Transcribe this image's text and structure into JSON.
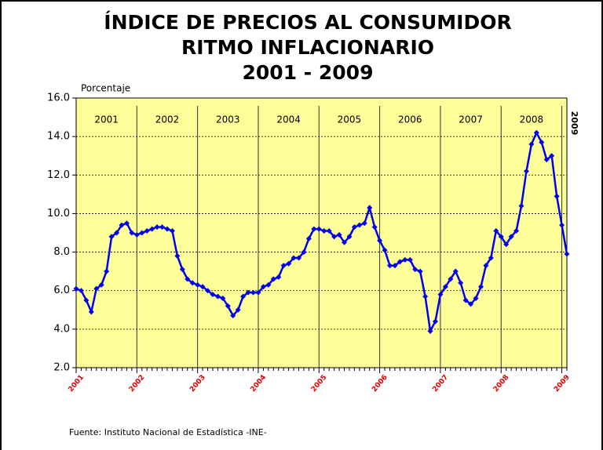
{
  "chart_data": {
    "type": "line",
    "title_lines": [
      "ÍNDICE DE PRECIOS AL CONSUMIDOR",
      "RITMO INFLACIONARIO",
      "2001 - 2009"
    ],
    "y_axis_label": "Porcentaje",
    "source": "Fuente: Instituto Nacional de Estadística -INE-",
    "period_labels": [
      "2001",
      "2002",
      "2003",
      "2004",
      "2005",
      "2006",
      "2007",
      "2008",
      "2009"
    ],
    "categories": [
      "2001",
      null,
      null,
      null,
      null,
      null,
      null,
      null,
      null,
      null,
      null,
      null,
      "2002",
      null,
      null,
      null,
      null,
      null,
      null,
      null,
      null,
      null,
      null,
      null,
      "2003",
      null,
      null,
      null,
      null,
      null,
      null,
      null,
      null,
      null,
      null,
      null,
      "2004",
      null,
      null,
      null,
      null,
      null,
      null,
      null,
      null,
      null,
      null,
      null,
      "2005",
      null,
      null,
      null,
      null,
      null,
      null,
      null,
      null,
      null,
      null,
      null,
      "2006",
      null,
      null,
      null,
      null,
      null,
      null,
      null,
      null,
      null,
      null,
      null,
      "2007",
      null,
      null,
      null,
      null,
      null,
      null,
      null,
      null,
      null,
      null,
      null,
      "2008",
      null,
      null,
      null,
      null,
      null,
      null,
      null,
      null,
      null,
      null,
      null,
      "2009",
      null
    ],
    "series": [
      {
        "name": "Ritmo inflacionario",
        "color": "#0000ee",
        "values": [
          6.1,
          6.0,
          5.5,
          4.9,
          6.1,
          6.3,
          7.0,
          8.8,
          9.0,
          9.4,
          9.5,
          9.0,
          8.9,
          9.0,
          9.1,
          9.2,
          9.3,
          9.3,
          9.2,
          9.1,
          7.8,
          7.1,
          6.6,
          6.4,
          6.3,
          6.2,
          6.0,
          5.8,
          5.7,
          5.6,
          5.2,
          4.7,
          5.0,
          5.7,
          5.9,
          5.9,
          5.9,
          6.2,
          6.3,
          6.6,
          6.7,
          7.3,
          7.4,
          7.7,
          7.7,
          8.0,
          8.7,
          9.2,
          9.2,
          9.1,
          9.1,
          8.8,
          8.9,
          8.5,
          8.8,
          9.3,
          9.4,
          9.5,
          10.3,
          9.3,
          8.6,
          8.1,
          7.3,
          7.3,
          7.5,
          7.6,
          7.6,
          7.1,
          7.0,
          5.7,
          3.9,
          4.4,
          5.8,
          6.2,
          6.6,
          7.0,
          6.4,
          5.5,
          5.3,
          5.6,
          6.2,
          7.3,
          7.7,
          9.1,
          8.8,
          8.4,
          8.8,
          9.1,
          10.4,
          12.2,
          13.6,
          14.2,
          13.7,
          12.8,
          13.0,
          10.9,
          9.4,
          7.9
        ]
      }
    ],
    "ylim": [
      2,
      16
    ],
    "yticks": [
      {
        "value": 2,
        "label": "2.0"
      },
      {
        "value": 4,
        "label": "4.0"
      },
      {
        "value": 6,
        "label": "6.0"
      },
      {
        "value": 8,
        "label": "8.0"
      },
      {
        "value": 10,
        "label": "10.0"
      },
      {
        "value": 12,
        "label": "12.0"
      },
      {
        "value": 14,
        "label": "14.0"
      },
      {
        "value": 16,
        "label": "16.0"
      }
    ],
    "grid": true,
    "background": "#ffff99"
  }
}
